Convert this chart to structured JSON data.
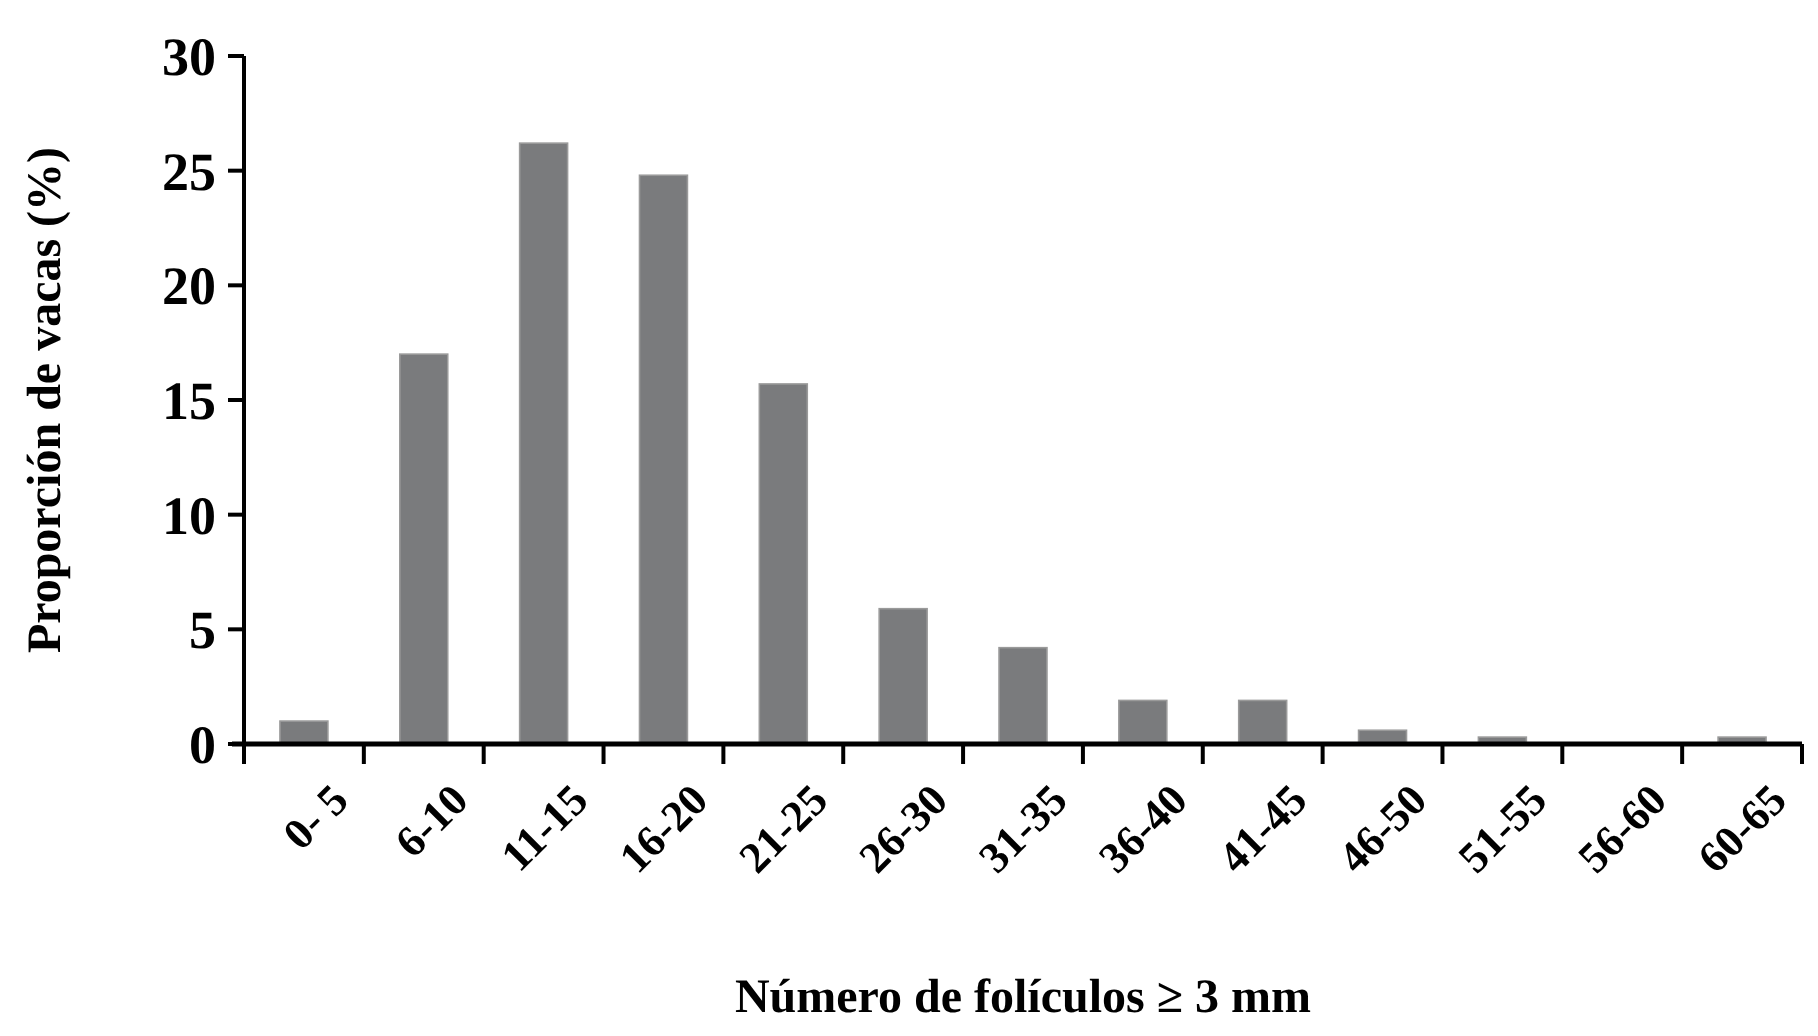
{
  "chart_data": {
    "type": "bar",
    "xlabel": "Número de folículos ≥ 3 mm",
    "ylabel": "Proporción de vacas (%)",
    "categories": [
      "0- 5",
      "6-10",
      "11-15",
      "16-20",
      "21-25",
      "26-30",
      "31-35",
      "36-40",
      "41-45",
      "46-50",
      "51-55",
      "56-60",
      "60-65"
    ],
    "values": [
      1.0,
      17.0,
      26.2,
      24.8,
      15.7,
      5.9,
      4.2,
      1.9,
      1.9,
      0.6,
      0.3,
      0,
      0.3
    ],
    "color": "#7a7b7d",
    "ylim": [
      0,
      30
    ],
    "yticks": [
      0,
      5,
      10,
      15,
      20,
      25,
      30
    ],
    "grid": false
  }
}
